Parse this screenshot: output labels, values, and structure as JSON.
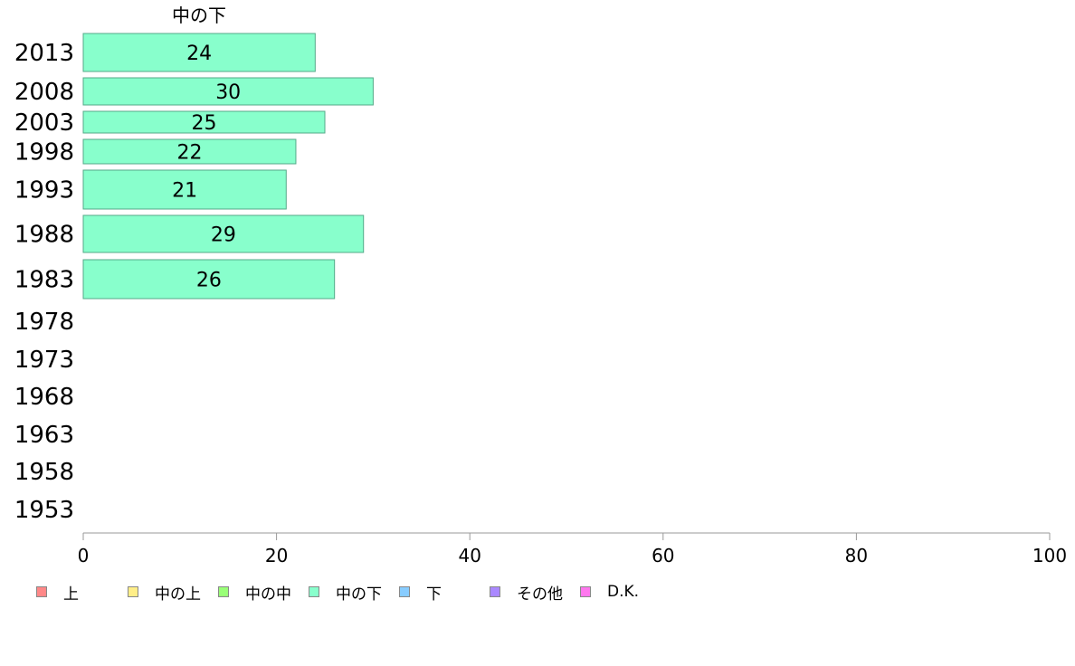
{
  "chart_data": {
    "type": "bar",
    "orientation": "horizontal",
    "series_title": "中の下",
    "categories": [
      "2013",
      "2008",
      "2003",
      "1998",
      "1993",
      "1988",
      "1983",
      "1978",
      "1973",
      "1968",
      "1963",
      "1958",
      "1953"
    ],
    "series": [
      {
        "name": "中の下",
        "color": "#88ffcc",
        "values": [
          24,
          30,
          25,
          22,
          21,
          29,
          26,
          null,
          null,
          null,
          null,
          null,
          null
        ],
        "labels": [
          "24",
          "30",
          "25",
          "22",
          "21",
          "29",
          "26",
          "",
          "",
          "",
          "",
          "",
          ""
        ]
      }
    ],
    "xlim": [
      0,
      100
    ],
    "xticks": [
      "0",
      "20",
      "40",
      "60",
      "80",
      "100"
    ],
    "grid": false,
    "legend_position": "bottom",
    "legend": [
      {
        "label": "上",
        "color": "#ff8888"
      },
      {
        "label": "中の上",
        "color": "#ffee88"
      },
      {
        "label": "中の中",
        "color": "#99ff77"
      },
      {
        "label": "中の下",
        "color": "#88ffcc"
      },
      {
        "label": "下",
        "color": "#88ccff"
      },
      {
        "label": "その他",
        "color": "#aa88ff"
      },
      {
        "label": "D.K.",
        "color": "#ff77ee"
      }
    ]
  }
}
